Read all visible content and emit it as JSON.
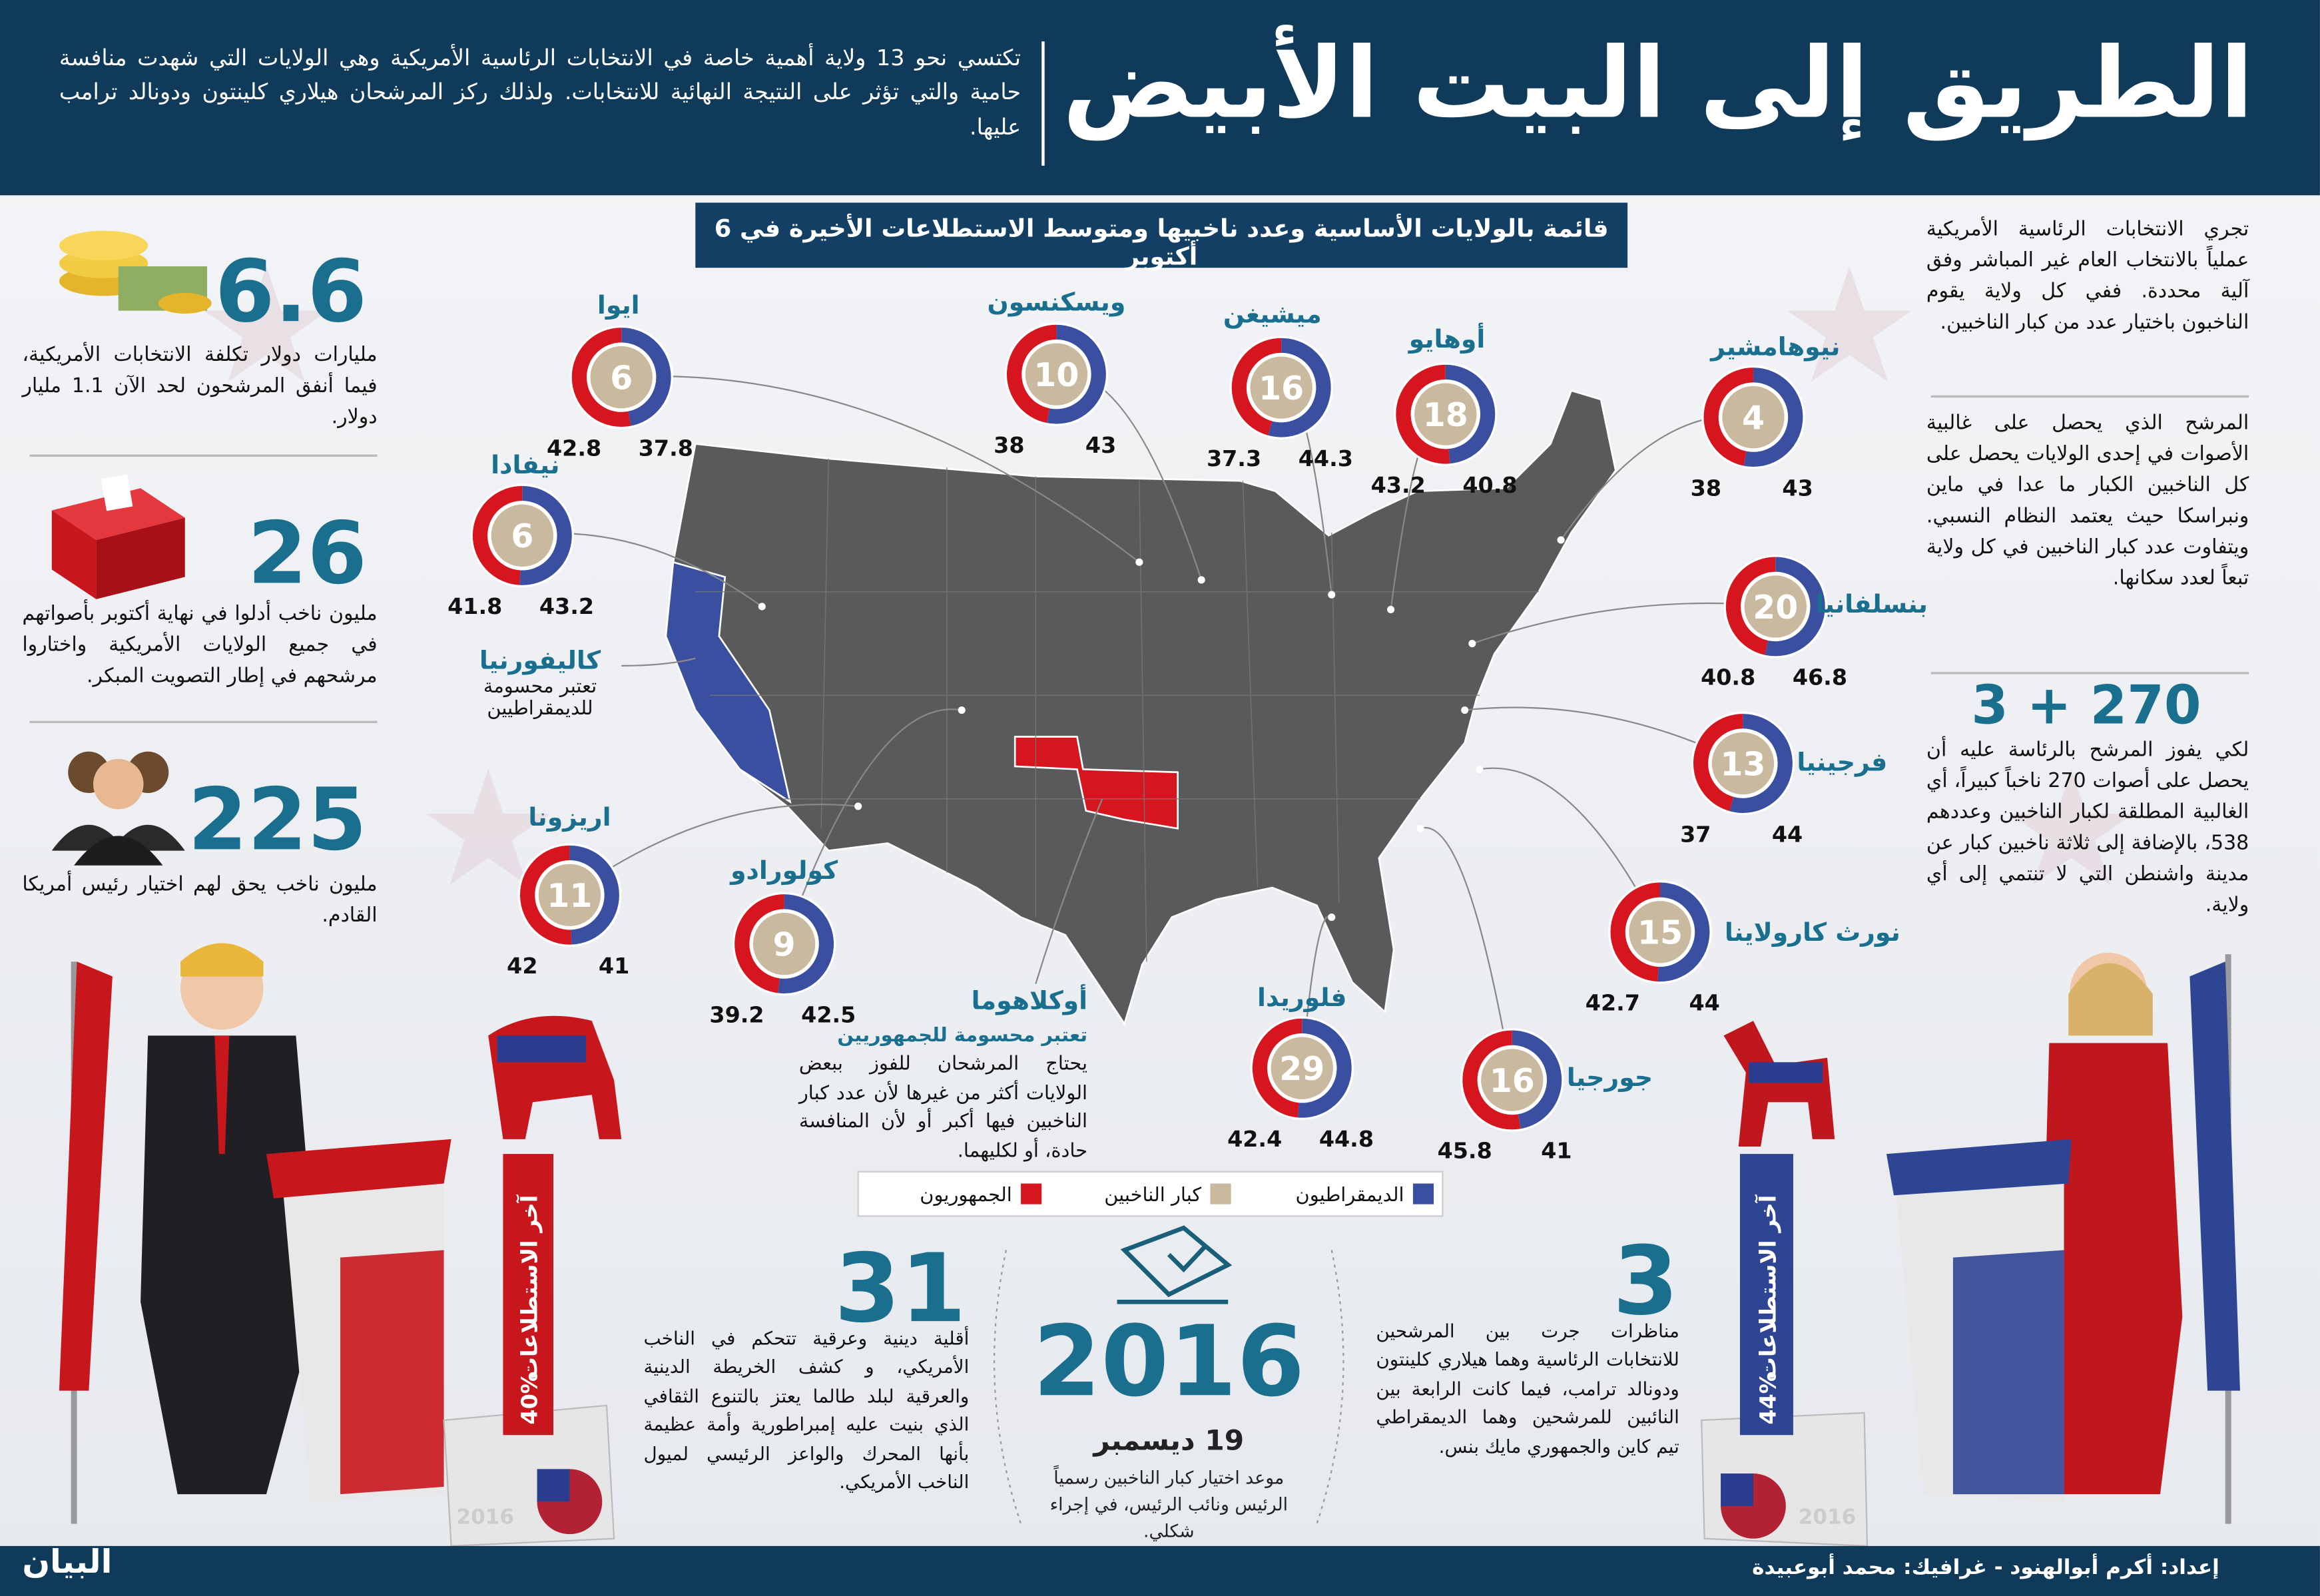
{
  "header": {
    "title": "الطريق إلى البيت الأبيض",
    "intro": "تكتسي نحو 13 ولاية أهمية خاصة في الانتخابات الرئاسية الأمريكية وهي الولايات التي شهدت منافسة حامية والتي تؤثر على النتيجة النهائية للانتخابات. ولذلك ركز المرشحان هيلاري كلينتون ودونالد ترامب عليها."
  },
  "map": {
    "subtitle": "قائمة بالولايات الأساسية وعدد ناخبيها ومتوسط الاستطلاعات الأخيرة في 6 أكتوبر",
    "states": [
      {
        "name": "ايوا",
        "electors": 6,
        "rep": 42.8,
        "dem": 37.8
      },
      {
        "name": "ويسكنسون",
        "electors": 10,
        "rep": 38,
        "dem": 43
      },
      {
        "name": "ميشيغن",
        "electors": 16,
        "rep": 37.3,
        "dem": 44.3
      },
      {
        "name": "أوهايو",
        "electors": 18,
        "rep": 43.2,
        "dem": 40.8
      },
      {
        "name": "نيوهامشير",
        "electors": 4,
        "rep": 38,
        "dem": 43
      },
      {
        "name": "نيفادا",
        "electors": 6,
        "rep": 41.8,
        "dem": 43.2
      },
      {
        "name": "بنسلفانيا",
        "electors": 20,
        "rep": 40.8,
        "dem": 46.8
      },
      {
        "name": "فرجينيا",
        "electors": 13,
        "rep": 37,
        "dem": 44
      },
      {
        "name": "اريزونا",
        "electors": 11,
        "rep": 42,
        "dem": 41
      },
      {
        "name": "كولورادو",
        "electors": 9,
        "rep": 39.2,
        "dem": 42.5
      },
      {
        "name": "نورث كارولاينا",
        "electors": 15,
        "rep": 42.7,
        "dem": 44
      },
      {
        "name": "فلوريدا",
        "electors": 29,
        "rep": 42.4,
        "dem": 44.8
      },
      {
        "name": "جورجيا",
        "electors": 16,
        "rep": 45.8,
        "dem": 41
      }
    ],
    "safe_states": [
      {
        "name": "كاليفورنيا",
        "note": "تعتبر محسومة للديمقراطيين"
      },
      {
        "name": "أوكلاهوما",
        "note": "تعتبر محسومة للجمهوريين"
      }
    ],
    "note": "يحتاج المرشحان للفوز ببعض الولايات أكثر من غيرها لأن عدد كبار الناخبين فيها أكبر أو لأن المنافسة حادة، أو لكليهما."
  },
  "legend": [
    {
      "label": "الديمقراطيون",
      "color": "#3b4fa0"
    },
    {
      "label": "كبار الناخبين",
      "color": "#c9b99e"
    },
    {
      "label": "الجمهوريون",
      "color": "#d7151f"
    }
  ],
  "left_stats": [
    {
      "number": "6.6",
      "text": "مليارات دولار تكلفة الانتخابات الأمريكية، فيما أنفق المرشحون لحد الآن 1.1 مليار دولار."
    },
    {
      "number": "26",
      "text": "مليون ناخب أدلوا في نهاية أكتوبر بأصواتهم في جميع الولايات الأمريكية واختاروا مرشحهم في إطار التصويت المبكر."
    },
    {
      "number": "225",
      "text": "مليون ناخب يحق لهم اختيار رئيس أمريكا القادم."
    }
  ],
  "right_column": {
    "paragraphs": [
      "تجري الانتخابات الرئاسية الأمريكية عملياً بالانتخاب العام غير المباشر وفق آلية محددة. ففي كل ولاية يقوم الناخبون باختيار عدد من كبار الناخبين.",
      "المرشح الذي يحصل على غالبية الأصوات في إحدى الولايات يحصل على كل الناخبين الكبار ما عدا في ماين ونبراسكا حيث يعتمد النظام النسبي. ويتفاوت عدد كبار الناخبين في كل ولاية تبعاً لعدد سكانها."
    ],
    "stat": {
      "number": "3 + 270",
      "text": "لكي يفوز المرشح بالرئاسة عليه أن يحصل على أصوات 270 ناخباً كبيراً، أي الغالبية المطلقة لكبار الناخبين وعددهم 538، بالإضافة إلى ثلاثة ناخبين كبار عن مدينة واشنطن التي لا تنتمي إلى أي ولاية."
    }
  },
  "bottom": {
    "minorities": {
      "number": "31",
      "text": "أقلية دينية وعرقية تتحكم في الناخب الأمريكي، و كشف الخريطة الدينية والعرقية لبلد طالما يعتز بالتنوع الثقافي الذي بنيت عليه إمبراطورية وأمة عظيمة بأنها المحرك والواعز الرئيسي لميول الناخب الأمريكي."
    },
    "date": {
      "year": "2016",
      "day": "19 ديسمبر",
      "text": "موعد اختيار كبار الناخبين رسمياً الرئيس ونائب الرئيس، في إجراء شكلي."
    },
    "debates": {
      "number": "3",
      "text": "مناظرات جرت بين المرشحين للانتخابات الرئاسية وهما هيلاري كلينتون ودونالد ترامب، فيما كانت الرابعة بين النائبين للمرشحين وهما الديمقراطي تيم كاين والجمهوري مايك بنس."
    }
  },
  "polls": {
    "label": "آخر الاستطلاعات",
    "republican": "40%",
    "democrat": "44%",
    "box_label": "2016"
  },
  "footer": {
    "credits": "إعداد: أكرم أبوالهنود - غرافيك: محمد أبوعبيدة",
    "logo": "البيان"
  }
}
